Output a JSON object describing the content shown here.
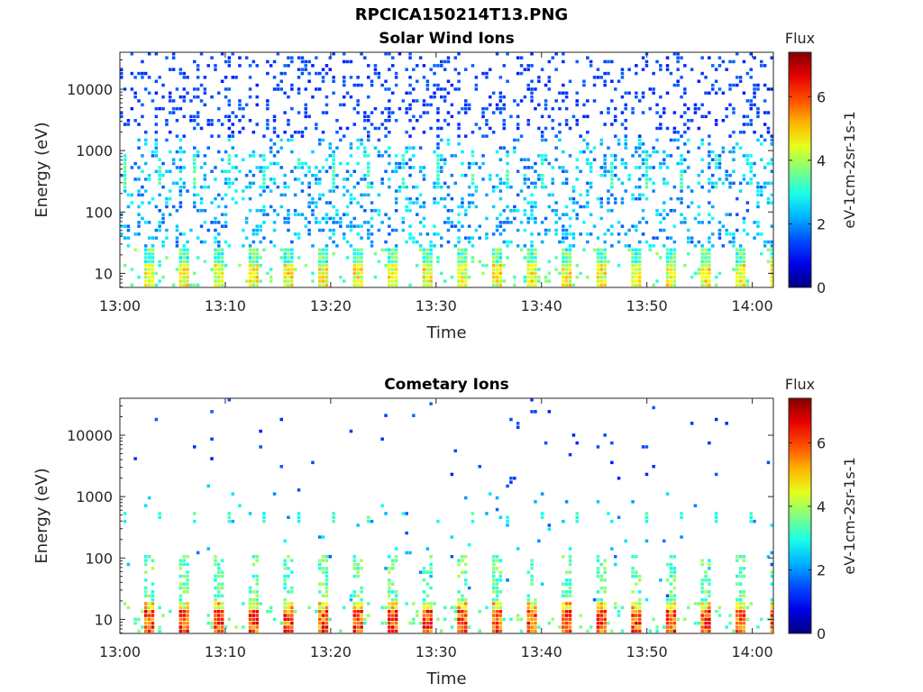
{
  "figure_title": "RPCICA150214T13.PNG",
  "chart_data": [
    {
      "type": "heatmap",
      "title": "Solar Wind Ions",
      "xlabel": "Time",
      "ylabel": "Energy (eV)",
      "x_ticks": [
        "13:00",
        "13:10",
        "13:20",
        "13:30",
        "13:40",
        "13:50",
        "14:00"
      ],
      "y_ticks": [
        "10",
        "100",
        "1000",
        "10000"
      ],
      "y_scale": "log",
      "ylim": [
        5.9,
        40000
      ],
      "colorbar": {
        "title": "Flux",
        "label": "eV-1cm-2sr-1s-1",
        "ticks": [
          "0",
          "2",
          "4",
          "6"
        ],
        "range": [
          0,
          7.4
        ]
      },
      "pattern": {
        "scatter_density": 1.0,
        "low_intensity": 5.0,
        "low_tops": 25,
        "mid_rows": [
          250,
          900
        ],
        "sweep_minutes": 3.3,
        "first_sweep": 13.0833,
        "cometary": false
      }
    },
    {
      "type": "heatmap",
      "title": "Cometary Ions",
      "xlabel": "Time",
      "ylabel": "Energy (eV)",
      "x_ticks": [
        "13:00",
        "13:10",
        "13:20",
        "13:30",
        "13:40",
        "13:50",
        "14:00"
      ],
      "y_ticks": [
        "10",
        "100",
        "1000",
        "10000"
      ],
      "y_scale": "log",
      "ylim": [
        5.9,
        40000
      ],
      "colorbar": {
        "title": "Flux",
        "label": "eV-1cm-2sr-1s-1",
        "ticks": [
          "0",
          "2",
          "4",
          "6"
        ],
        "range": [
          0,
          7.4
        ]
      },
      "pattern": {
        "scatter_density": 0.15,
        "low_intensity": 6.6,
        "low_tops": 20,
        "mid_rows": [
          350,
          550
        ],
        "sweep_minutes": 3.3,
        "first_sweep": 13.0833,
        "cometary": true
      }
    }
  ]
}
